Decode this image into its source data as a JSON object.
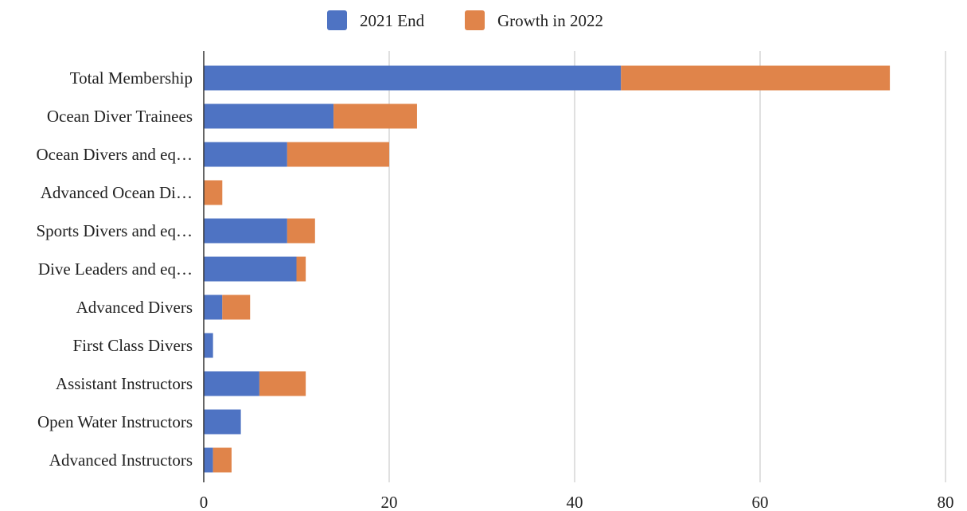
{
  "chart_data": {
    "type": "bar",
    "orientation": "horizontal",
    "stacked": true,
    "categories": [
      "Total Membership",
      "Ocean Diver Trainees",
      "Ocean Divers and eq…",
      "Advanced Ocean Di…",
      "Sports Divers and eq…",
      "Dive Leaders and eq…",
      "Advanced Divers",
      "First Class Divers",
      "Assistant Instructors",
      "Open Water Instructors",
      "Advanced Instructors"
    ],
    "series": [
      {
        "name": "2021 End",
        "color": "#4e73c3",
        "values": [
          45,
          14,
          9,
          0,
          9,
          10,
          2,
          1,
          6,
          4,
          1
        ]
      },
      {
        "name": "Growth in 2022",
        "color": "#e0844a",
        "values": [
          29,
          9,
          11,
          2,
          3,
          1,
          3,
          0,
          5,
          0,
          2
        ]
      }
    ],
    "xlim": [
      0,
      80
    ],
    "xticks": [
      "0",
      "20",
      "40",
      "60",
      "80"
    ],
    "xlabel": "",
    "ylabel": "",
    "title": "",
    "grid": true,
    "legend_position": "top"
  }
}
